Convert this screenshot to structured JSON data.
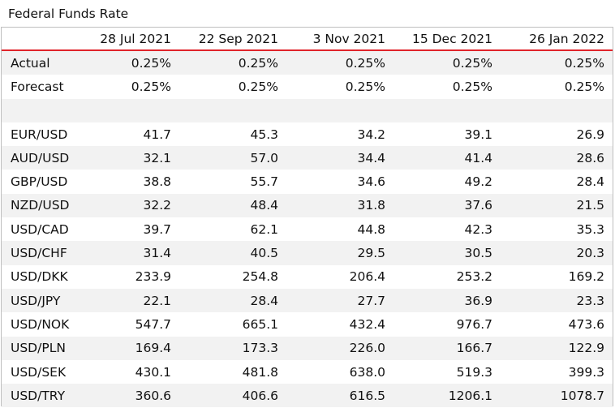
{
  "title": "Federal Funds Rate",
  "header": {
    "first": "",
    "dates": [
      "28 Jul 2021",
      "22 Sep 2021",
      "3 Nov 2021",
      "15 Dec 2021",
      "26 Jan 2022"
    ]
  },
  "rows": [
    {
      "label": "Actual",
      "values": [
        "0.25%",
        "0.25%",
        "0.25%",
        "0.25%",
        "0.25%"
      ]
    },
    {
      "label": "Forecast",
      "values": [
        "0.25%",
        "0.25%",
        "0.25%",
        "0.25%",
        "0.25%"
      ]
    },
    {
      "label": "",
      "values": [
        "",
        "",
        "",
        "",
        ""
      ]
    },
    {
      "label": "EUR/USD",
      "values": [
        "41.7",
        "45.3",
        "34.2",
        "39.1",
        "26.9"
      ]
    },
    {
      "label": "AUD/USD",
      "values": [
        "32.1",
        "57.0",
        "34.4",
        "41.4",
        "28.6"
      ]
    },
    {
      "label": "GBP/USD",
      "values": [
        "38.8",
        "55.7",
        "34.6",
        "49.2",
        "28.4"
      ]
    },
    {
      "label": "NZD/USD",
      "values": [
        "32.2",
        "48.4",
        "31.8",
        "37.6",
        "21.5"
      ]
    },
    {
      "label": "USD/CAD",
      "values": [
        "39.7",
        "62.1",
        "44.8",
        "42.3",
        "35.3"
      ]
    },
    {
      "label": "USD/CHF",
      "values": [
        "31.4",
        "40.5",
        "29.5",
        "30.5",
        "20.3"
      ]
    },
    {
      "label": "USD/DKK",
      "values": [
        "233.9",
        "254.8",
        "206.4",
        "253.2",
        "169.2"
      ]
    },
    {
      "label": "USD/JPY",
      "values": [
        "22.1",
        "28.4",
        "27.7",
        "36.9",
        "23.3"
      ]
    },
    {
      "label": "USD/NOK",
      "values": [
        "547.7",
        "665.1",
        "432.4",
        "976.7",
        "473.6"
      ]
    },
    {
      "label": "USD/PLN",
      "values": [
        "169.4",
        "173.3",
        "226.0",
        "166.7",
        "122.9"
      ]
    },
    {
      "label": "USD/SEK",
      "values": [
        "430.1",
        "481.8",
        "638.0",
        "519.3",
        "399.3"
      ]
    },
    {
      "label": "USD/TRY",
      "values": [
        "360.6",
        "406.6",
        "616.5",
        "1206.1",
        "1078.7"
      ]
    }
  ]
}
